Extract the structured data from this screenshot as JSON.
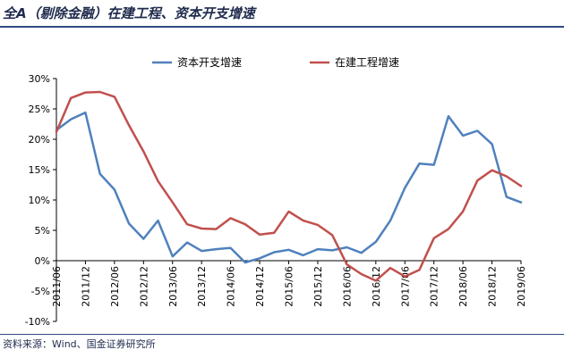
{
  "header": {
    "title": "全A（剔除金融）在建工程、资本开支增速"
  },
  "footer": {
    "source": "资料来源：Wind、国金证券研究所"
  },
  "chart_data": {
    "type": "line",
    "title": "全A（剔除金融）在建工程、资本开支增速",
    "xlabel": "",
    "ylabel": "",
    "ylim": [
      -10,
      30
    ],
    "y_ticks": [
      -10,
      -5,
      0,
      5,
      10,
      15,
      20,
      25,
      30
    ],
    "y_tick_labels": [
      "-10%",
      "-5%",
      "0%",
      "5%",
      "10%",
      "15%",
      "20%",
      "25%",
      "30%"
    ],
    "x": [
      "2011/06",
      "2011/09",
      "2011/12",
      "2012/03",
      "2012/06",
      "2012/09",
      "2012/12",
      "2013/03",
      "2013/06",
      "2013/09",
      "2013/12",
      "2014/03",
      "2014/06",
      "2014/09",
      "2014/12",
      "2015/03",
      "2015/06",
      "2015/09",
      "2015/12",
      "2016/03",
      "2016/06",
      "2016/09",
      "2016/12",
      "2017/03",
      "2017/06",
      "2017/09",
      "2017/12",
      "2018/03",
      "2018/06",
      "2018/09",
      "2018/12",
      "2019/03",
      "2019/06"
    ],
    "x_tick_labels": [
      "2011/06",
      "2011/12",
      "2012/06",
      "2012/12",
      "2013/06",
      "2013/12",
      "2014/06",
      "2014/12",
      "2015/06",
      "2015/12",
      "2016/06",
      "2016/12",
      "2017/06",
      "2017/12",
      "2018/06",
      "2018/12",
      "2019/06"
    ],
    "grid": false,
    "legend": "top-center",
    "series": [
      {
        "name": "资本开支增速",
        "color": "#4f81bd",
        "values": [
          21.5,
          23.3,
          24.4,
          14.3,
          11.7,
          6.1,
          3.6,
          6.6,
          0.7,
          3.0,
          1.6,
          1.9,
          2.1,
          -0.3,
          0.4,
          1.4,
          1.8,
          0.9,
          1.9,
          1.7,
          2.2,
          1.3,
          3.1,
          6.6,
          12.0,
          16.0,
          15.8,
          23.8,
          20.6,
          21.4,
          19.2,
          10.5,
          9.6
        ]
      },
      {
        "name": "在建工程增速",
        "color": "#c0504d",
        "values": [
          21.2,
          26.8,
          27.7,
          27.8,
          27.0,
          22.3,
          18.0,
          13.1,
          9.6,
          6.0,
          5.3,
          5.2,
          7.0,
          6.0,
          4.3,
          4.6,
          8.1,
          6.6,
          5.9,
          4.2,
          -0.6,
          -2.2,
          -3.3,
          -1.2,
          -2.6,
          -1.5,
          3.7,
          5.2,
          8.1,
          13.2,
          14.9,
          13.9,
          12.3
        ]
      }
    ]
  }
}
